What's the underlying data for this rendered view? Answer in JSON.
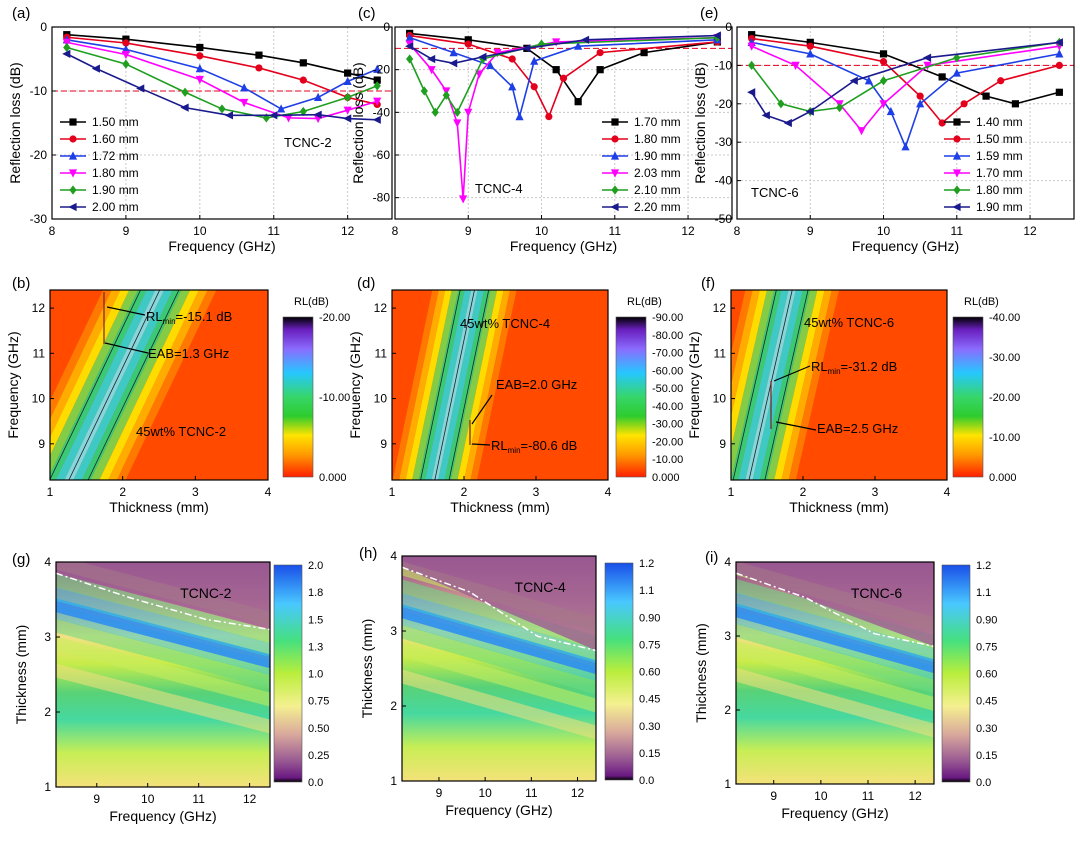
{
  "chart_data": [
    {
      "panel": "(a)",
      "type": "line",
      "name": "TCNC-2",
      "xlabel": "Frequency (GHz)",
      "ylabel": "Reflection loss (dB)",
      "xlim": [
        8,
        12.6
      ],
      "ylim": [
        -30,
        0
      ],
      "xticks": [
        "8",
        "9",
        "10",
        "11",
        "12"
      ],
      "yticks": [
        "0",
        "-10",
        "-20",
        "-30"
      ],
      "threshold": -10,
      "legend_position": "bottom-left",
      "series": [
        {
          "name": "1.50 mm",
          "color": "#000000",
          "marker": "square",
          "x": [
            8.2,
            9,
            10,
            10.8,
            11.4,
            12,
            12.4
          ],
          "y": [
            -1.2,
            -1.9,
            -3.2,
            -4.4,
            -5.6,
            -7.2,
            -8.3
          ]
        },
        {
          "name": "1.60 mm",
          "color": "#e4001c",
          "marker": "circle",
          "x": [
            8.2,
            9,
            10,
            10.8,
            11.4,
            12,
            12.4
          ],
          "y": [
            -1.6,
            -2.5,
            -4.5,
            -6.4,
            -8.3,
            -11,
            -12.1
          ]
        },
        {
          "name": "1.72 mm",
          "color": "#1f3fe6",
          "marker": "triangle-up",
          "x": [
            8.2,
            9,
            10,
            10.6,
            11.1,
            11.6,
            12,
            12.4
          ],
          "y": [
            -2,
            -3.5,
            -6.5,
            -9.5,
            -12.8,
            -11,
            -8.5,
            -6.6
          ]
        },
        {
          "name": "1.80 mm",
          "color": "#ff00ff",
          "marker": "triangle-down",
          "x": [
            8.2,
            9,
            10,
            10.6,
            11.2,
            11.6,
            12,
            12.4
          ],
          "y": [
            -2.4,
            -4.3,
            -8.2,
            -11.8,
            -14.2,
            -14.3,
            -13,
            -11.6
          ]
        },
        {
          "name": "1.90 mm",
          "color": "#1f9e1f",
          "marker": "diamond",
          "x": [
            8.2,
            9,
            9.8,
            10.3,
            10.9,
            11.4,
            12,
            12.4
          ],
          "y": [
            -3.2,
            -5.8,
            -10.2,
            -12.8,
            -14.2,
            -13.2,
            -11,
            -9.2
          ]
        },
        {
          "name": "2.00 mm",
          "color": "#1a1a8c",
          "marker": "triangle-left",
          "x": [
            8.2,
            8.6,
            9.2,
            9.8,
            10.4,
            11,
            11.6,
            12,
            12.4
          ],
          "y": [
            -4.2,
            -6.5,
            -9.6,
            -12.6,
            -13.8,
            -13.8,
            -13.7,
            -14.3,
            -14.5
          ]
        }
      ]
    },
    {
      "panel": "(c)",
      "type": "line",
      "name": "TCNC-4",
      "xlabel": "Frequency (GHz)",
      "ylabel": "Reflection loss (dB)",
      "xlim": [
        8,
        12.6
      ],
      "ylim": [
        -90,
        0
      ],
      "xticks": [
        "8",
        "9",
        "10",
        "11",
        "12"
      ],
      "yticks": [
        "0",
        "-20",
        "-40",
        "-60",
        "-80"
      ],
      "threshold": -10,
      "legend_position": "bottom-right",
      "series": [
        {
          "name": "1.70 mm",
          "color": "#000000",
          "marker": "square",
          "x": [
            8.2,
            9,
            9.8,
            10.2,
            10.5,
            10.8,
            11.4,
            12.4
          ],
          "y": [
            -3,
            -6,
            -10,
            -20,
            -35,
            -20,
            -12,
            -7
          ]
        },
        {
          "name": "1.80 mm",
          "color": "#e4001c",
          "marker": "circle",
          "x": [
            8.2,
            9,
            9.6,
            9.9,
            10.1,
            10.3,
            10.8,
            12.4
          ],
          "y": [
            -4,
            -8,
            -15,
            -28,
            -42,
            -24,
            -12,
            -7
          ]
        },
        {
          "name": "1.90 mm",
          "color": "#1f3fe6",
          "marker": "triangle-up",
          "x": [
            8.2,
            8.8,
            9.3,
            9.6,
            9.7,
            9.9,
            10.5,
            12.4
          ],
          "y": [
            -5,
            -12,
            -18,
            -28,
            -42,
            -16,
            -9,
            -6
          ]
        },
        {
          "name": "2.03 mm",
          "color": "#ff00ff",
          "marker": "triangle-down",
          "x": [
            8.2,
            8.5,
            8.7,
            8.85,
            8.93,
            9.0,
            9.15,
            9.4,
            10.2,
            12.4
          ],
          "y": [
            -8,
            -20,
            -30,
            -45,
            -80.6,
            -40,
            -22,
            -12,
            -7,
            -5
          ]
        },
        {
          "name": "2.10 mm",
          "color": "#1f9e1f",
          "marker": "diamond",
          "x": [
            8.2,
            8.4,
            8.55,
            8.7,
            8.85,
            9.2,
            10,
            12.4
          ],
          "y": [
            -15,
            -30,
            -40,
            -32,
            -40,
            -15,
            -8,
            -5
          ]
        },
        {
          "name": "2.20 mm",
          "color": "#1a1a8c",
          "marker": "triangle-left",
          "x": [
            8.2,
            8.5,
            8.8,
            9.2,
            9.8,
            10.6,
            12.4
          ],
          "y": [
            -9,
            -15,
            -17,
            -14,
            -10,
            -6,
            -4
          ]
        }
      ]
    },
    {
      "panel": "(e)",
      "type": "line",
      "name": "TCNC-6",
      "xlabel": "Frequency (GHz)",
      "ylabel": "Reflection loss (dB)",
      "xlim": [
        8,
        12.6
      ],
      "ylim": [
        -50,
        0
      ],
      "xticks": [
        "8",
        "9",
        "10",
        "11",
        "12"
      ],
      "yticks": [
        "0",
        "-10",
        "-20",
        "-30",
        "-40",
        "-50"
      ],
      "threshold": -10,
      "legend_position": "bottom-right",
      "series": [
        {
          "name": "1.40 mm",
          "color": "#000000",
          "marker": "square",
          "x": [
            8.2,
            9,
            10,
            10.8,
            11.4,
            11.8,
            12.4
          ],
          "y": [
            -2,
            -4,
            -7,
            -13,
            -18,
            -20,
            -17
          ]
        },
        {
          "name": "1.50 mm",
          "color": "#e4001c",
          "marker": "circle",
          "x": [
            8.2,
            9,
            10,
            10.5,
            10.8,
            11.1,
            11.6,
            12.4
          ],
          "y": [
            -3,
            -5,
            -9,
            -18,
            -25,
            -20,
            -14,
            -10
          ]
        },
        {
          "name": "1.59 mm",
          "color": "#1f3fe6",
          "marker": "triangle-up",
          "x": [
            8.2,
            9,
            9.8,
            10.1,
            10.3,
            10.5,
            11,
            12.4
          ],
          "y": [
            -4,
            -7,
            -14,
            -22,
            -31.2,
            -20,
            -12,
            -7
          ]
        },
        {
          "name": "1.70 mm",
          "color": "#ff00ff",
          "marker": "triangle-down",
          "x": [
            8.2,
            8.8,
            9.4,
            9.7,
            10,
            10.6,
            12.4
          ],
          "y": [
            -5,
            -10,
            -20,
            -27,
            -20,
            -10,
            -5
          ]
        },
        {
          "name": "1.80 mm",
          "color": "#1f9e1f",
          "marker": "diamond",
          "x": [
            8.2,
            8.6,
            9,
            9.4,
            10,
            11,
            12.4
          ],
          "y": [
            -10,
            -20,
            -22,
            -21,
            -14,
            -8,
            -4
          ]
        },
        {
          "name": "1.90 mm",
          "color": "#1a1a8c",
          "marker": "triangle-left",
          "x": [
            8.2,
            8.4,
            8.7,
            9,
            9.6,
            10.6,
            12.4
          ],
          "y": [
            -17,
            -23,
            -25,
            -22,
            -14,
            -8,
            -4
          ]
        }
      ]
    },
    {
      "panel": "(b)",
      "type": "heatmap",
      "name": "45wt% TCNC-2",
      "xlabel": "Thickness (mm)",
      "ylabel": "Frequency (GHz)",
      "xlim": [
        1,
        4
      ],
      "ylim": [
        8.2,
        12.4
      ],
      "xticks": [
        "1",
        "2",
        "3",
        "4"
      ],
      "yticks": [
        "9",
        "10",
        "11",
        "12"
      ],
      "colorbar": {
        "title": "RL(dB)",
        "ticks": [
          "-20.00",
          "-10.00",
          "0.000"
        ]
      },
      "annotations": {
        "rl_min": "=-15.1 dB",
        "eab": "EAB=1.3 GHz",
        "label": "45wt% TCNC-2"
      }
    },
    {
      "panel": "(d)",
      "type": "heatmap",
      "name": "45wt% TCNC-4",
      "xlabel": "Thickness (mm)",
      "ylabel": "Frequency (GHz)",
      "xlim": [
        1,
        4
      ],
      "ylim": [
        8.2,
        12.4
      ],
      "xticks": [
        "1",
        "2",
        "3",
        "4"
      ],
      "yticks": [
        "9",
        "10",
        "11",
        "12"
      ],
      "colorbar": {
        "title": "RL(dB)",
        "ticks": [
          "-90.00",
          "-80.00",
          "-70.00",
          "-60.00",
          "-50.00",
          "-40.00",
          "-30.00",
          "-20.00",
          "-10.00",
          "0.000"
        ]
      },
      "annotations": {
        "rl_min": "=-80.6 dB",
        "eab": "EAB=2.0 GHz",
        "label": "45wt% TCNC-4"
      }
    },
    {
      "panel": "(f)",
      "type": "heatmap",
      "name": "45wt% TCNC-6",
      "xlabel": "Thickness (mm)",
      "ylabel": "Frequency (GHz)",
      "xlim": [
        1,
        4
      ],
      "ylim": [
        8.2,
        12.4
      ],
      "xticks": [
        "1",
        "2",
        "3",
        "4"
      ],
      "yticks": [
        "9",
        "10",
        "11",
        "12"
      ],
      "colorbar": {
        "title": "RL(dB)",
        "ticks": [
          "-40.00",
          "-30.00",
          "-20.00",
          "-10.00",
          "0.000"
        ]
      },
      "annotations": {
        "rl_min": "=-31.2 dB",
        "eab": "EAB=2.5 GHz",
        "label": "45wt% TCNC-6"
      }
    },
    {
      "panel": "(g)",
      "type": "heatmap",
      "name": "TCNC-2",
      "xlabel": "Frequency (GHz)",
      "ylabel": "Thickness (mm)",
      "xlim": [
        8.2,
        12.4
      ],
      "ylim": [
        1,
        4
      ],
      "xticks": [
        "9",
        "10",
        "11",
        "12"
      ],
      "yticks": [
        "1",
        "2",
        "3",
        "4"
      ],
      "colorbar": {
        "ticks": [
          "2.0",
          "1.8",
          "1.5",
          "1.3",
          "1.0",
          "0.75",
          "0.50",
          "0.25",
          "0.0"
        ]
      }
    },
    {
      "panel": "(h)",
      "type": "heatmap",
      "name": "TCNC-4",
      "xlabel": "Frequency (GHz)",
      "ylabel": "Thickness (mm)",
      "xlim": [
        8.2,
        12.4
      ],
      "ylim": [
        1,
        4
      ],
      "xticks": [
        "9",
        "10",
        "11",
        "12"
      ],
      "yticks": [
        "1",
        "2",
        "3",
        "4"
      ],
      "colorbar": {
        "ticks": [
          "1.2",
          "1.1",
          "0.90",
          "0.75",
          "0.60",
          "0.45",
          "0.30",
          "0.15",
          "0.0"
        ]
      }
    },
    {
      "panel": "(i)",
      "type": "heatmap",
      "name": "TCNC-6",
      "xlabel": "Frequency (GHz)",
      "ylabel": "Thickness (mm)",
      "xlim": [
        8.2,
        12.4
      ],
      "ylim": [
        1,
        4
      ],
      "xticks": [
        "9",
        "10",
        "11",
        "12"
      ],
      "yticks": [
        "1",
        "2",
        "3",
        "4"
      ],
      "colorbar": {
        "ticks": [
          "1.2",
          "1.1",
          "0.90",
          "0.75",
          "0.60",
          "0.45",
          "0.30",
          "0.15",
          "0.0"
        ]
      }
    }
  ]
}
